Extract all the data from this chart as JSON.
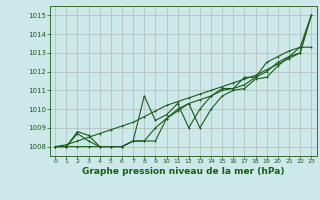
{
  "bg_color": "#cce8e8",
  "grid_color": "#b0b0b0",
  "line_color": "#1a5c1a",
  "title": "Graphe pression niveau de la mer (hPa)",
  "xlim": [
    -0.5,
    23.5
  ],
  "ylim": [
    1007.5,
    1015.5
  ],
  "yticks": [
    1008,
    1009,
    1010,
    1011,
    1012,
    1013,
    1014,
    1015
  ],
  "xticks": [
    0,
    1,
    2,
    3,
    4,
    5,
    6,
    7,
    8,
    9,
    10,
    11,
    12,
    13,
    14,
    15,
    16,
    17,
    18,
    19,
    20,
    21,
    22,
    23
  ],
  "series1": [
    1008.0,
    1008.0,
    1008.8,
    1008.6,
    1008.0,
    1008.0,
    1008.0,
    1008.3,
    1010.7,
    1009.4,
    1009.7,
    1010.3,
    1009.0,
    1010.0,
    1010.7,
    1011.1,
    1011.1,
    1011.7,
    1011.7,
    1012.5,
    1012.8,
    1013.1,
    1013.3,
    1015.0
  ],
  "series2": [
    1008.0,
    1008.0,
    1008.0,
    1008.0,
    1008.0,
    1008.0,
    1008.0,
    1008.3,
    1008.3,
    1009.0,
    1009.5,
    1010.0,
    1010.3,
    1010.5,
    1010.7,
    1011.0,
    1011.1,
    1011.3,
    1011.7,
    1012.0,
    1012.5,
    1012.8,
    1013.3,
    1013.3
  ],
  "series3": [
    1008.0,
    1008.0,
    1008.7,
    1008.3,
    1008.0,
    1008.0,
    1008.0,
    1008.3,
    1008.3,
    1008.3,
    1009.5,
    1009.9,
    1010.3,
    1009.0,
    1010.0,
    1010.7,
    1011.0,
    1011.1,
    1011.6,
    1011.7,
    1012.3,
    1012.8,
    1013.0,
    1015.0
  ],
  "series_smooth": [
    1008.0,
    1008.1,
    1008.3,
    1008.5,
    1008.7,
    1008.9,
    1009.1,
    1009.3,
    1009.6,
    1009.9,
    1010.2,
    1010.4,
    1010.6,
    1010.8,
    1011.0,
    1011.2,
    1011.4,
    1011.6,
    1011.8,
    1012.1,
    1012.4,
    1012.7,
    1013.0,
    1015.0
  ]
}
